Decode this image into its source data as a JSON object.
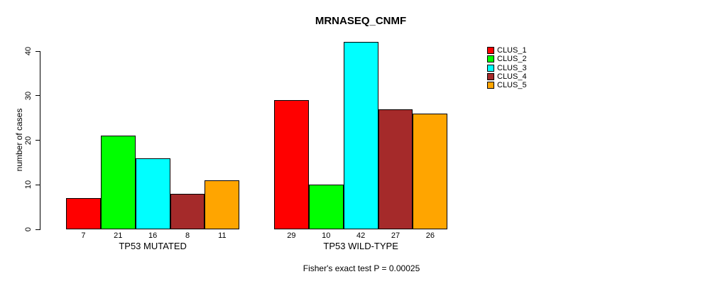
{
  "figure": {
    "title": "MRNASEQ_CNMF",
    "footer": "Fisher's exact test P = 0.00025"
  },
  "chart_data": {
    "type": "bar",
    "title": "MRNASEQ_CNMF",
    "xlabel": "",
    "ylabel": "number of cases",
    "ylim": [
      0,
      40
    ],
    "yticks": [
      0,
      10,
      20,
      30,
      40
    ],
    "grid": false,
    "legend_position": "top-right",
    "bar_border_color": "#000000",
    "categories": [
      "TP53 MUTATED",
      "TP53 WILD-TYPE"
    ],
    "series": [
      {
        "name": "CLUS_1",
        "color": "#FF0000",
        "values": [
          7,
          29
        ]
      },
      {
        "name": "CLUS_2",
        "color": "#00FF00",
        "values": [
          21,
          10
        ]
      },
      {
        "name": "CLUS_3",
        "color": "#00FFFF",
        "values": [
          16,
          42
        ]
      },
      {
        "name": "CLUS_4",
        "color": "#A52A2A",
        "values": [
          8,
          27
        ]
      },
      {
        "name": "CLUS_5",
        "color": "#FFA500",
        "values": [
          11,
          26
        ]
      }
    ],
    "bar_value_labels_shown": true,
    "annotation": "Fisher's exact test P = 0.00025"
  }
}
